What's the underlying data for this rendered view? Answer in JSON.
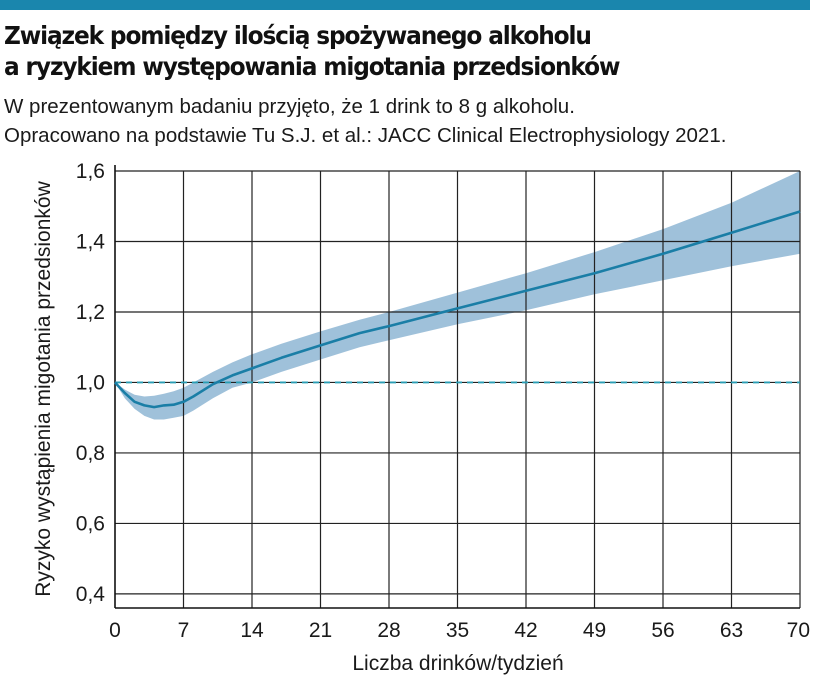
{
  "header": {
    "title_line1": "Związek pomiędzy ilością spożywanego alkoholu",
    "title_line2": "a ryzykiem występowania migotania przedsionków",
    "subtitle_line1": "W prezentowanym badaniu przyjęto, że 1 drink to 8 g alkoholu.",
    "subtitle_line2": "Opracowano na podstawie Tu S.J. et al.:  JACC Clinical Electrophysiology 2021."
  },
  "colors": {
    "accent_bar": "#1a86ad",
    "line": "#1a7ea6",
    "band": "#8eb6d3",
    "reference_line": "#2a9db4",
    "grid": "#222222"
  },
  "chart_data": {
    "type": "line",
    "title": "Związek pomiędzy ilością spożywanego alkoholu a ryzykiem występowania migotania przedsionków",
    "xlabel": "Liczba drinków/tydzień",
    "ylabel": "Ryzyko wystąpienia migotania przedsionków",
    "xlim": [
      0,
      70
    ],
    "ylim": [
      0.36,
      1.6
    ],
    "x_ticks": [
      0,
      7,
      14,
      21,
      28,
      35,
      42,
      49,
      56,
      63,
      70
    ],
    "y_ticks": [
      0.4,
      0.6,
      0.8,
      1.0,
      1.2,
      1.4,
      1.6
    ],
    "y_tick_labels": [
      "0,4",
      "0,6",
      "0,8",
      "1,0",
      "1,2",
      "1,4",
      "1,6"
    ],
    "grid": true,
    "reference_line": {
      "y": 1.0,
      "style": "dashed"
    },
    "series": [
      {
        "x": [
          0,
          1,
          2,
          3,
          4,
          5,
          6,
          7,
          8,
          10,
          12,
          14,
          17,
          21,
          25,
          28,
          35,
          42,
          49,
          56,
          63,
          70
        ],
        "y": [
          1.0,
          0.97,
          0.945,
          0.935,
          0.93,
          0.935,
          0.937,
          0.945,
          0.96,
          0.995,
          1.02,
          1.04,
          1.07,
          1.105,
          1.14,
          1.16,
          1.21,
          1.26,
          1.31,
          1.365,
          1.425,
          1.485
        ],
        "upper": [
          1.0,
          0.98,
          0.965,
          0.96,
          0.962,
          0.968,
          0.975,
          0.985,
          1.0,
          1.03,
          1.057,
          1.08,
          1.11,
          1.145,
          1.178,
          1.2,
          1.255,
          1.31,
          1.37,
          1.435,
          1.51,
          1.6
        ],
        "lower": [
          1.0,
          0.955,
          0.925,
          0.905,
          0.895,
          0.895,
          0.9,
          0.905,
          0.92,
          0.955,
          0.985,
          1.0,
          1.03,
          1.065,
          1.1,
          1.12,
          1.165,
          1.205,
          1.25,
          1.29,
          1.33,
          1.365
        ]
      }
    ]
  }
}
